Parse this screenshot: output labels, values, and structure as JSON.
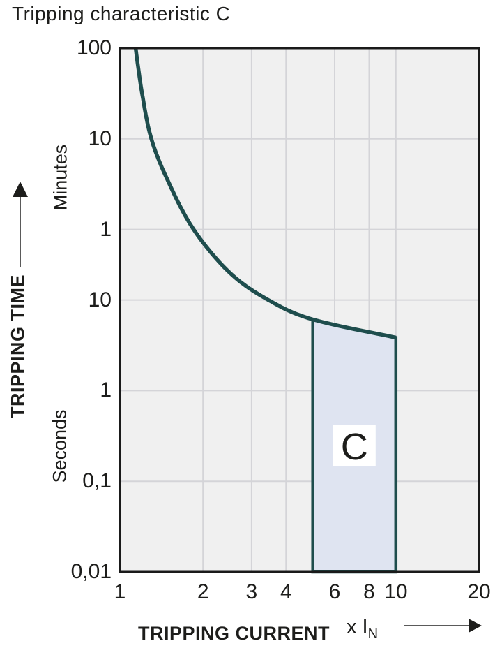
{
  "title": "Tripping characteristic C",
  "y_axis": {
    "axis_label": "TRIPPING TIME",
    "unit_top": "Minutes",
    "unit_bottom": "Seconds"
  },
  "x_axis": {
    "axis_label": "TRIPPING CURRENT",
    "multiplier": "x I",
    "multiplier_sub": "N"
  },
  "chart_data": {
    "type": "area",
    "title": "Tripping characteristic C",
    "x_scale": "log",
    "y_scale": "log",
    "xlabel": "TRIPPING CURRENT (x IN)",
    "ylabel": "TRIPPING TIME (Minutes / Seconds)",
    "x_range": [
      1,
      20
    ],
    "y_range_seconds": [
      0.01,
      6000
    ],
    "x_ticks": [
      {
        "value": 1,
        "label": "1"
      },
      {
        "value": 2,
        "label": "2"
      },
      {
        "value": 3,
        "label": "3"
      },
      {
        "value": 4,
        "label": "4"
      },
      {
        "value": 6,
        "label": "6"
      },
      {
        "value": 8,
        "label": "8"
      },
      {
        "value": 10,
        "label": "10"
      },
      {
        "value": 20,
        "label": "20"
      }
    ],
    "y_ticks": [
      {
        "seconds": 6000,
        "label": "100",
        "unit": "minutes"
      },
      {
        "seconds": 600,
        "label": "10",
        "unit": "minutes"
      },
      {
        "seconds": 60,
        "label": "1",
        "unit": "minutes"
      },
      {
        "seconds": 10,
        "label": "10",
        "unit": "seconds"
      },
      {
        "seconds": 1,
        "label": "1",
        "unit": "seconds"
      },
      {
        "seconds": 0.1,
        "label": "0,1",
        "unit": "seconds"
      },
      {
        "seconds": 0.01,
        "label": "0,01",
        "unit": "seconds"
      }
    ],
    "grid": {
      "x_values": [
        2,
        3,
        4,
        6,
        8,
        10
      ],
      "y_values_seconds": [
        600,
        60,
        10,
        1,
        0.1
      ]
    },
    "curve_points_x_seconds": [
      [
        1.14,
        6000
      ],
      [
        1.2,
        2000
      ],
      [
        1.3,
        600
      ],
      [
        1.5,
        200
      ],
      [
        1.85,
        60
      ],
      [
        2.5,
        20
      ],
      [
        3.45,
        10
      ],
      [
        5.0,
        6.1
      ],
      [
        10.0,
        3.85
      ]
    ],
    "trip_band": {
      "label": "C",
      "x_from": 5,
      "x_to": 10,
      "top_from_seconds": 6.1,
      "top_to_seconds": 3.85,
      "bottom_seconds": 0.01
    },
    "colors": {
      "curve": "#1e4d4d",
      "band_fill": "#dfe4f1",
      "band_stroke": "#1e4d4d",
      "plot_bg": "#f0f0f0",
      "grid_line": "#d4d4d8",
      "border": "#1a1a1a"
    }
  }
}
